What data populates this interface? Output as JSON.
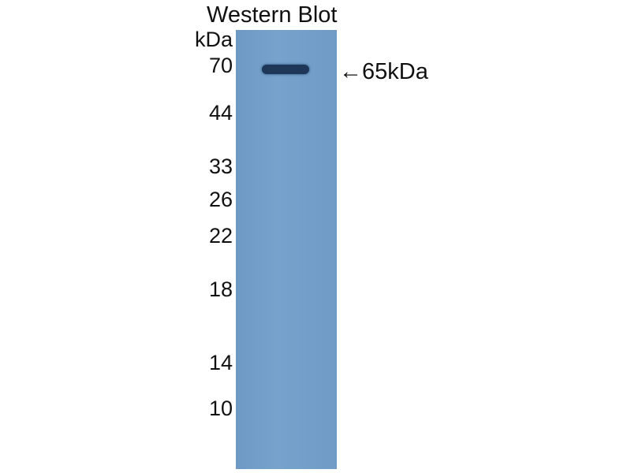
{
  "title": "Western Blot",
  "unit": "kDa",
  "markers": [
    "70",
    "44",
    "33",
    "26",
    "22",
    "18",
    "14",
    "10"
  ],
  "target_label": "←65kDa",
  "colors": {
    "membrane": "#719ec8",
    "band": "#1e3758"
  }
}
